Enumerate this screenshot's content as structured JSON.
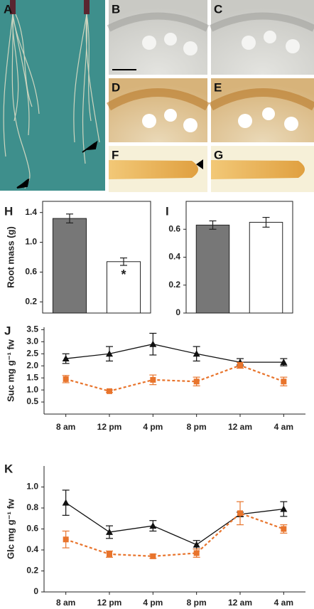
{
  "photo_panels": [
    "A",
    "B",
    "C",
    "D",
    "E",
    "F",
    "G"
  ],
  "chart_data": [
    {
      "type": "bar",
      "panel_label": "H",
      "y_label": "Root mass (g)",
      "categories": [
        null,
        null
      ],
      "series": [
        {
          "values": [
            1.32,
            0.74
          ],
          "errors": [
            0.06,
            0.05
          ],
          "colors": [
            "#777777",
            "#ffffff"
          ]
        }
      ],
      "annotation": "*",
      "ylim": [
        0.05,
        1.55
      ],
      "yticks": [
        0.2,
        0.6,
        {
          "value": 1,
          "label": "1.0"
        },
        1.4
      ]
    },
    {
      "type": "bar",
      "panel_label": "I",
      "categories": [
        null,
        null
      ],
      "series": [
        {
          "values": [
            0.63,
            0.65
          ],
          "errors": [
            0.03,
            0.035
          ],
          "colors": [
            "#777777",
            "#ffffff"
          ]
        }
      ],
      "ylim": [
        0,
        0.8
      ],
      "yticks": [
        0,
        0.2,
        0.4,
        0.6
      ]
    },
    {
      "type": "line",
      "panel_label": "J",
      "y_label": "Suc mg g⁻¹ fw",
      "categories": [
        "8 am",
        "12 pm",
        "4 pm",
        "8 pm",
        "12 am",
        "4 am"
      ],
      "series": [
        {
          "color": "#111111",
          "marker": "triangle",
          "dashed": false,
          "values": [
            2.3,
            2.5,
            2.9,
            2.5,
            2.15,
            2.15
          ],
          "errors": [
            0.2,
            0.3,
            0.45,
            0.3,
            0.15,
            0.15
          ]
        },
        {
          "color": "#e8742c",
          "marker": "square",
          "dashed": true,
          "values": [
            1.45,
            0.95,
            1.42,
            1.35,
            2.02,
            1.35
          ],
          "errors": [
            0.15,
            0.05,
            0.2,
            0.18,
            0.12,
            0.18
          ]
        }
      ],
      "ylim": [
        0,
        3.6
      ],
      "yticks": [
        0.5,
        {
          "value": 1,
          "label": "1.0"
        },
        1.5,
        {
          "value": 2,
          "label": "2.0"
        },
        2.5,
        {
          "value": 3,
          "label": "3.0"
        },
        3.5
      ]
    },
    {
      "type": "line",
      "panel_label": "K",
      "y_label": "Glc mg g⁻¹ fw",
      "categories": [
        "8 am",
        "12 pm",
        "4 pm",
        "8 pm",
        "12 am",
        "4 am"
      ],
      "series": [
        {
          "color": "#111111",
          "marker": "triangle",
          "dashed": false,
          "values": [
            0.85,
            0.57,
            0.63,
            0.45,
            0.74,
            0.79
          ],
          "errors": [
            0.12,
            0.06,
            0.05,
            0.04,
            0.02,
            0.07
          ]
        },
        {
          "color": "#e8742c",
          "marker": "square",
          "dashed": true,
          "values": [
            0.5,
            0.36,
            0.34,
            0.37,
            0.75,
            0.6
          ],
          "errors": [
            0.08,
            0.03,
            0.02,
            0.04,
            0.11,
            0.04
          ]
        }
      ],
      "ylim": [
        0,
        1.2
      ],
      "yticks": [
        0,
        0.2,
        0.4,
        0.6,
        0.8,
        {
          "value": 1,
          "label": "1.0"
        }
      ]
    }
  ]
}
